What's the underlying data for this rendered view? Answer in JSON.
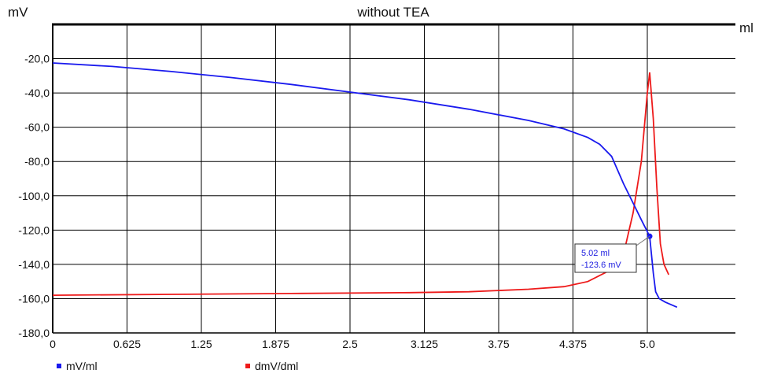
{
  "chart_data": {
    "type": "line",
    "title": "without TEA",
    "ylabel": "mV",
    "xlabel": "ml",
    "xlim": [
      0,
      5.625
    ],
    "ylim": [
      -180,
      0
    ],
    "x_ticks": [
      "0",
      "0.625",
      "1.25",
      "1.875",
      "2.5",
      "3.125",
      "3.75",
      "4.375",
      "5.0"
    ],
    "x_tick_values": [
      0,
      0.625,
      1.25,
      1.875,
      2.5,
      3.125,
      3.75,
      4.375,
      5.0
    ],
    "y_ticks": [
      "-20,0",
      "-40,0",
      "-60,0",
      "-80,0",
      "-100,0",
      "-120,0",
      "-140,0",
      "-160,0",
      "-180,0"
    ],
    "y_tick_values": [
      -20,
      -40,
      -60,
      -80,
      -100,
      -120,
      -140,
      -160,
      -180
    ],
    "grid": true,
    "legend_position": "bottom-left",
    "series": [
      {
        "name": "mV/ml",
        "color": "#1a1aee",
        "points": [
          [
            0,
            -22.5
          ],
          [
            0.5,
            -24.5
          ],
          [
            1.0,
            -27.5
          ],
          [
            1.5,
            -31
          ],
          [
            2.0,
            -35
          ],
          [
            2.5,
            -39.5
          ],
          [
            3.0,
            -44
          ],
          [
            3.5,
            -49.5
          ],
          [
            4.0,
            -56
          ],
          [
            4.3,
            -61
          ],
          [
            4.5,
            -66
          ],
          [
            4.6,
            -70
          ],
          [
            4.7,
            -77
          ],
          [
            4.8,
            -93
          ],
          [
            4.9,
            -107
          ],
          [
            4.95,
            -114
          ],
          [
            5.02,
            -123.6
          ],
          [
            5.05,
            -145
          ],
          [
            5.07,
            -156
          ],
          [
            5.1,
            -160
          ],
          [
            5.15,
            -162
          ],
          [
            5.2,
            -163.5
          ],
          [
            5.25,
            -165
          ]
        ]
      },
      {
        "name": "dmV/dml",
        "color": "#ee1a1a",
        "points": [
          [
            0,
            -158
          ],
          [
            1.0,
            -157.5
          ],
          [
            2.0,
            -157
          ],
          [
            3.0,
            -156.5
          ],
          [
            3.5,
            -156
          ],
          [
            4.0,
            -154.5
          ],
          [
            4.3,
            -153
          ],
          [
            4.5,
            -150
          ],
          [
            4.7,
            -143
          ],
          [
            4.8,
            -134
          ],
          [
            4.88,
            -110
          ],
          [
            4.95,
            -80
          ],
          [
            5.0,
            -40
          ],
          [
            5.02,
            -28
          ],
          [
            5.05,
            -55
          ],
          [
            5.08,
            -95
          ],
          [
            5.11,
            -128
          ],
          [
            5.14,
            -140
          ],
          [
            5.18,
            -146
          ]
        ]
      }
    ],
    "annotation": {
      "line1": "5.02 ml",
      "line2": "-123.6 mV",
      "x": 5.02,
      "y": -123.6
    }
  }
}
